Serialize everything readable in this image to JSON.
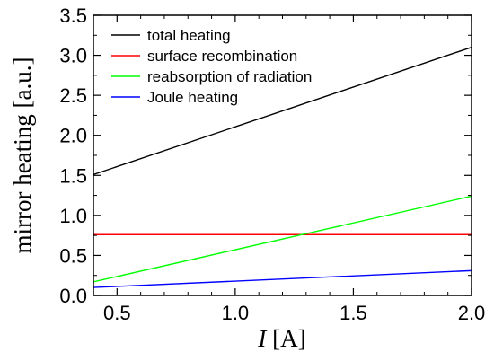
{
  "chart_data": {
    "type": "line",
    "title": "",
    "xlabel": {
      "symbol": "I",
      "unit": " [A]"
    },
    "ylabel": "mirror heating [a.u.]",
    "xlim": [
      0.4,
      2.0
    ],
    "ylim": [
      0.0,
      3.5
    ],
    "xticks": [
      0.5,
      1.0,
      1.5,
      2.0
    ],
    "xtick_labels": [
      "0.5",
      "1.0",
      "1.5",
      "2.0"
    ],
    "yticks": [
      0.0,
      0.5,
      1.0,
      1.5,
      2.0,
      2.5,
      3.0,
      3.5
    ],
    "ytick_labels": [
      "0.0",
      "0.5",
      "1.0",
      "1.5",
      "2.0",
      "2.5",
      "3.0",
      "3.5"
    ],
    "grid": false,
    "legend": "top-left",
    "series": [
      {
        "name": "total heating",
        "color": "#000000",
        "x": [
          0.4,
          2.0
        ],
        "y": [
          1.51,
          3.1
        ]
      },
      {
        "name": "surface recombination",
        "color": "#ff0000",
        "x": [
          0.4,
          2.0
        ],
        "y": [
          0.76,
          0.76
        ]
      },
      {
        "name": "reabsorption of radiation",
        "color": "#00ff00",
        "x": [
          0.4,
          2.0
        ],
        "y": [
          0.17,
          1.24
        ]
      },
      {
        "name": "Joule heating",
        "color": "#0000ff",
        "x": [
          0.4,
          2.0
        ],
        "y": [
          0.1,
          0.31
        ]
      }
    ]
  }
}
